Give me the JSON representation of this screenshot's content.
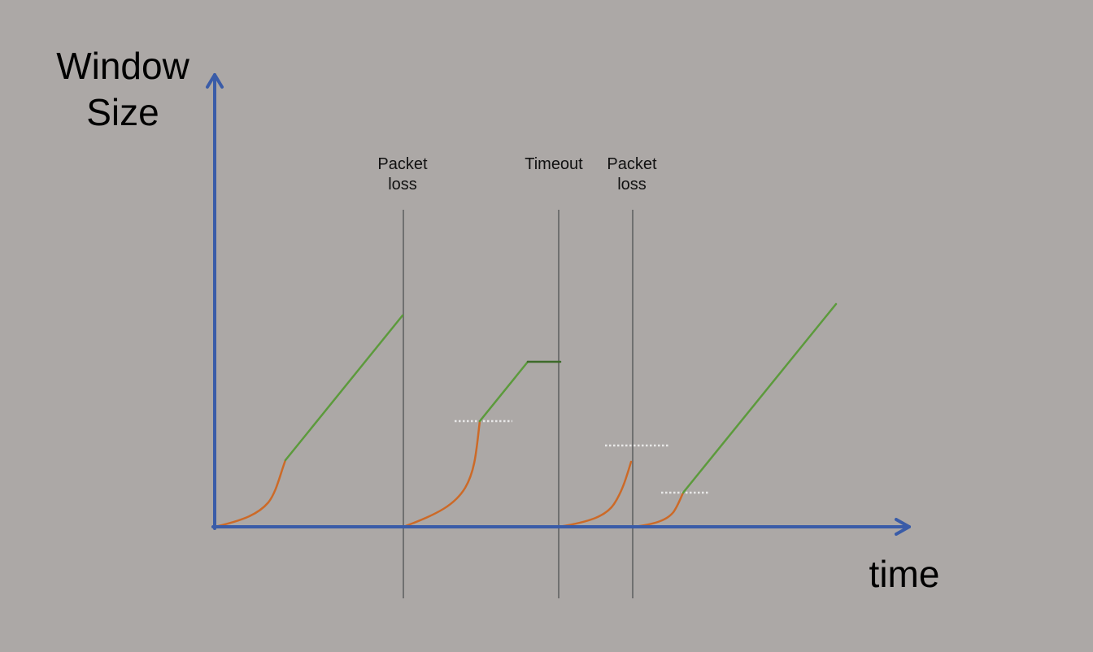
{
  "diagram": {
    "y_axis_label": [
      "Window",
      "Size"
    ],
    "x_axis_label": "time",
    "events": [
      {
        "label": [
          "Packet",
          "loss"
        ]
      },
      {
        "label": [
          "Timeout"
        ]
      },
      {
        "label": [
          "Packet",
          "loss"
        ]
      }
    ],
    "colors": {
      "background": "#aca8a6",
      "axes": "#3a5ca8",
      "slow_start": "#cc6a28",
      "congestion_avoidance": "#5c9a3c",
      "plateau": "#3e6b2a",
      "event_line": "#707070",
      "threshold": "#e8e8e8"
    }
  }
}
